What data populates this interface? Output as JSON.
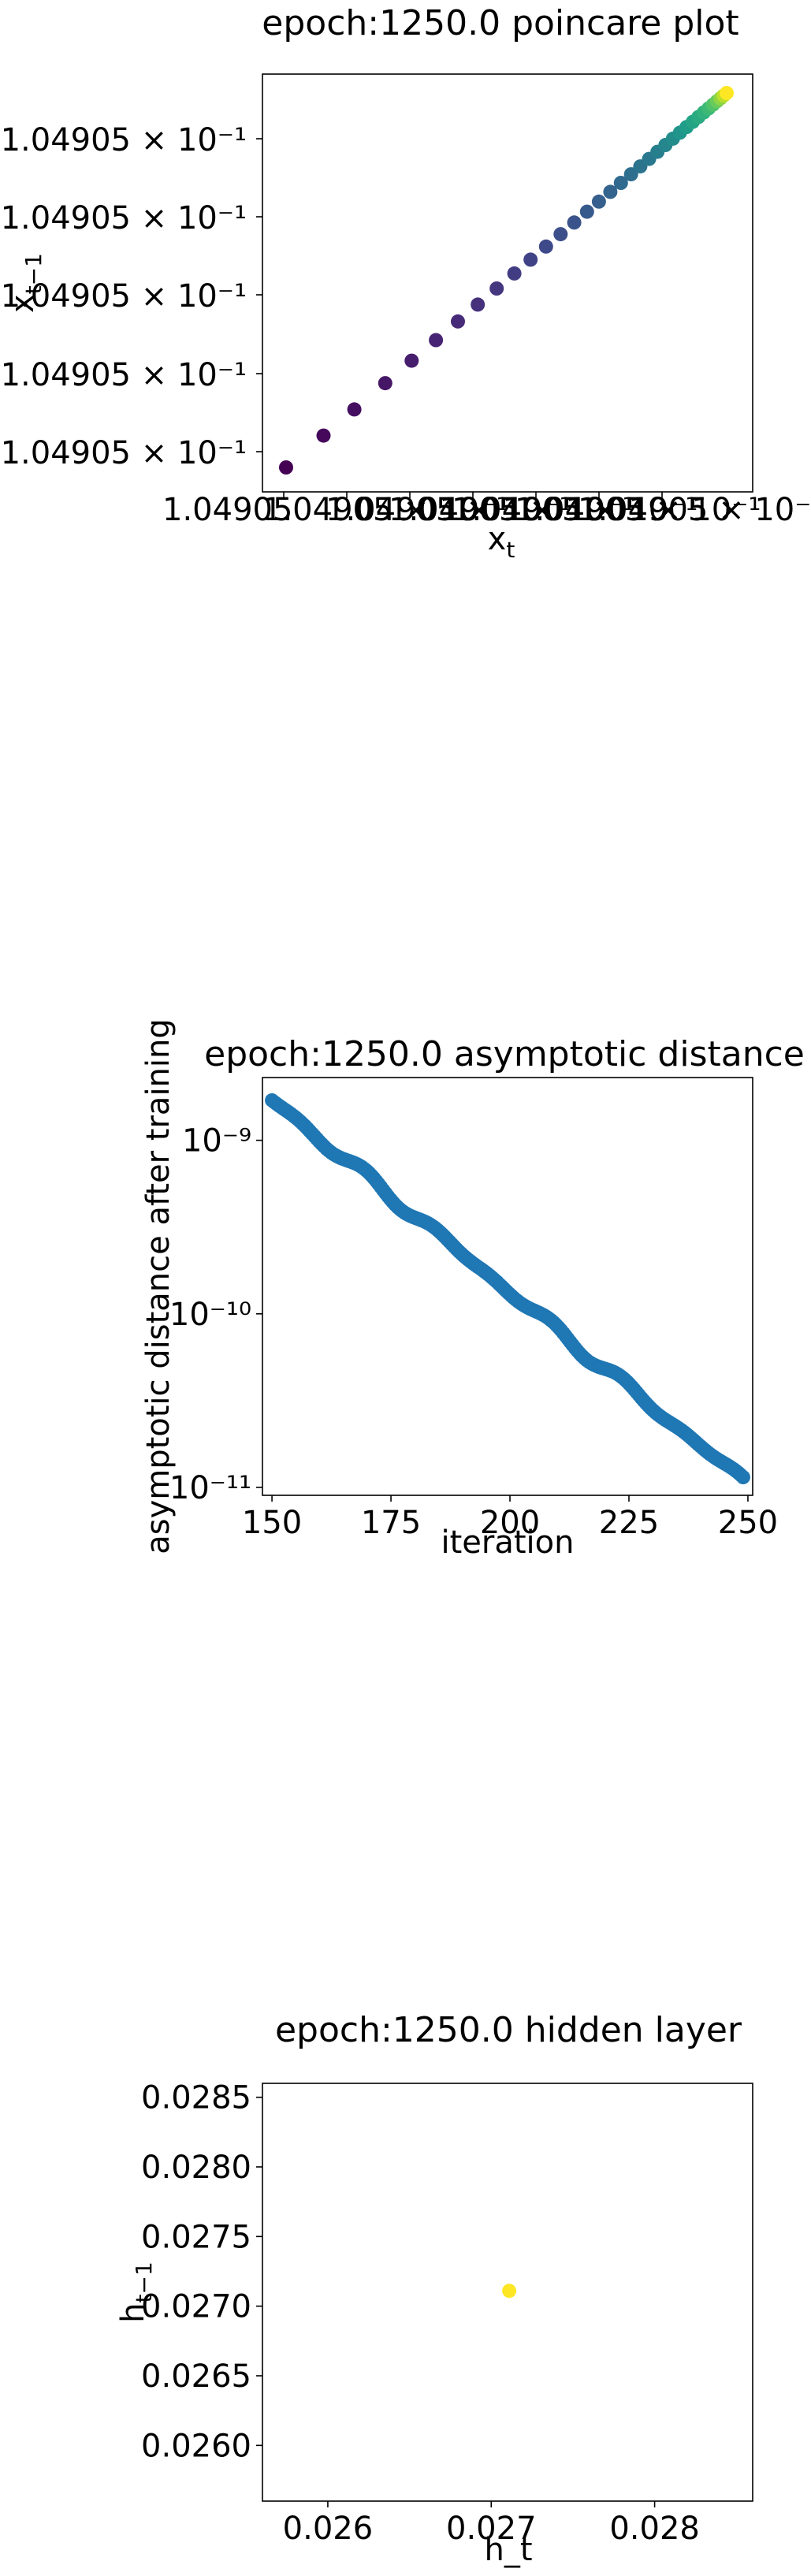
{
  "chart_data": [
    {
      "type": "scatter",
      "title": "epoch:1250.0 poincare plot",
      "xlabel": "x_t",
      "ylabel": "x_{t-1}",
      "x_tick_labels": [
        "1.04905",
        "1.04905 × 10⁻¹",
        "1.04905 × 10⁻¹",
        "1.04905 × 10⁻¹",
        "1.04905 × 10⁻¹",
        "1.04905 × 10⁻¹",
        "1.04905 × 10⁻¹"
      ],
      "y_tick_labels": [
        "1.04905 × 10⁻¹",
        "1.04905 × 10⁻¹",
        "1.04905 × 10⁻¹",
        "1.04905 × 10⁻¹",
        "1.04905 × 10⁻¹"
      ],
      "xlim": [
        0,
        1
      ],
      "ylim": [
        0,
        1
      ],
      "colormap": "viridis",
      "points": [
        {
          "x": 0.0,
          "y": 0.0,
          "c": 0.0
        },
        {
          "x": 0.085,
          "y": 0.085,
          "c": 0.02
        },
        {
          "x": 0.155,
          "y": 0.155,
          "c": 0.04
        },
        {
          "x": 0.225,
          "y": 0.225,
          "c": 0.06
        },
        {
          "x": 0.285,
          "y": 0.285,
          "c": 0.08
        },
        {
          "x": 0.34,
          "y": 0.34,
          "c": 0.1
        },
        {
          "x": 0.39,
          "y": 0.39,
          "c": 0.12
        },
        {
          "x": 0.435,
          "y": 0.435,
          "c": 0.14
        },
        {
          "x": 0.478,
          "y": 0.478,
          "c": 0.16
        },
        {
          "x": 0.518,
          "y": 0.518,
          "c": 0.18
        },
        {
          "x": 0.555,
          "y": 0.555,
          "c": 0.2
        },
        {
          "x": 0.59,
          "y": 0.59,
          "c": 0.22
        },
        {
          "x": 0.623,
          "y": 0.623,
          "c": 0.24
        },
        {
          "x": 0.654,
          "y": 0.654,
          "c": 0.26
        },
        {
          "x": 0.683,
          "y": 0.683,
          "c": 0.28
        },
        {
          "x": 0.71,
          "y": 0.71,
          "c": 0.3
        },
        {
          "x": 0.736,
          "y": 0.736,
          "c": 0.32
        },
        {
          "x": 0.76,
          "y": 0.76,
          "c": 0.34
        },
        {
          "x": 0.783,
          "y": 0.783,
          "c": 0.36
        },
        {
          "x": 0.804,
          "y": 0.804,
          "c": 0.38
        },
        {
          "x": 0.824,
          "y": 0.824,
          "c": 0.4
        },
        {
          "x": 0.843,
          "y": 0.843,
          "c": 0.43
        },
        {
          "x": 0.861,
          "y": 0.861,
          "c": 0.46
        },
        {
          "x": 0.878,
          "y": 0.878,
          "c": 0.49
        },
        {
          "x": 0.894,
          "y": 0.894,
          "c": 0.52
        },
        {
          "x": 0.909,
          "y": 0.909,
          "c": 0.55
        },
        {
          "x": 0.923,
          "y": 0.923,
          "c": 0.58
        },
        {
          "x": 0.936,
          "y": 0.936,
          "c": 0.61
        },
        {
          "x": 0.948,
          "y": 0.948,
          "c": 0.64
        },
        {
          "x": 0.959,
          "y": 0.959,
          "c": 0.68
        },
        {
          "x": 0.969,
          "y": 0.969,
          "c": 0.72
        },
        {
          "x": 0.978,
          "y": 0.978,
          "c": 0.77
        },
        {
          "x": 0.986,
          "y": 0.986,
          "c": 0.83
        },
        {
          "x": 0.993,
          "y": 0.993,
          "c": 0.9
        },
        {
          "x": 1.0,
          "y": 1.0,
          "c": 1.0
        }
      ]
    },
    {
      "type": "scatter",
      "title": "epoch:1250.0 asymptotic distance",
      "xlabel": "iteration",
      "ylabel": "asymptotic distance after training",
      "xlim": [
        148,
        251
      ],
      "ylim": [
        9e-12,
        2.3e-09
      ],
      "yscale": "log",
      "x_ticks": [
        150,
        175,
        200,
        225,
        250
      ],
      "y_ticks": [
        1e-11,
        1e-10,
        1e-09
      ],
      "y_tick_labels": [
        "10⁻¹¹",
        "10⁻¹⁰",
        "10⁻⁹"
      ],
      "color": "#1f77b4",
      "x_start": 150,
      "x_end": 249,
      "y_start": 1.7e-09,
      "y_end": 1.1e-11
    },
    {
      "type": "scatter",
      "title": "epoch:1250.0 hidden layer",
      "xlabel": "h_t",
      "ylabel": "h_{t-1}",
      "xlim": [
        0.0256,
        0.0286
      ],
      "ylim": [
        0.0256,
        0.0286
      ],
      "x_ticks": [
        0.026,
        0.027,
        0.028
      ],
      "y_ticks": [
        0.026,
        0.0265,
        0.027,
        0.0275,
        0.028,
        0.0285
      ],
      "x_tick_labels": [
        "0.026",
        "0.027",
        "0.028"
      ],
      "y_tick_labels": [
        "0.0260",
        "0.0265",
        "0.0270",
        "0.0275",
        "0.0280",
        "0.0285"
      ],
      "points": [
        {
          "x": 0.02711,
          "y": 0.02711
        }
      ],
      "color": "#fde725"
    }
  ]
}
